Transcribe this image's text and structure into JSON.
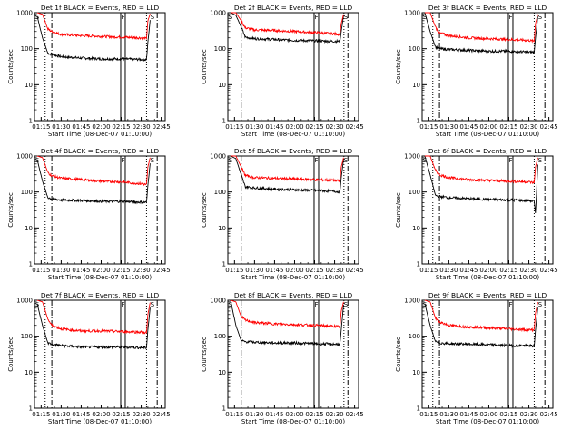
{
  "figure": {
    "ylabel": "Counts/sec",
    "xlabel": "Start Time (08-Dec-07 01:10:00)",
    "x_ticks": [
      "01:15",
      "01:30",
      "01:45",
      "02:00",
      "02:15",
      "02:30",
      "02:45"
    ],
    "y_ticks": [
      "1",
      "10",
      "100",
      "1000"
    ],
    "colors": {
      "events": "#000000",
      "lld": "#ff0000"
    },
    "marker_labels": {
      "flare": "F",
      "saa": "S"
    }
  },
  "chart_data": [
    {
      "type": "line",
      "title": "Det 1f BLACK = Events, RED = LLD",
      "ylim": [
        1,
        1000
      ],
      "y_scale": "log",
      "x_range": [
        "01:10",
        "02:48"
      ],
      "markers": {
        "dotted": [
          "01:18",
          "02:34"
        ],
        "dashdot": [
          "01:23",
          "02:42"
        ],
        "flare": [
          "02:16"
        ]
      },
      "series": [
        {
          "name": "Events",
          "color": "#000000",
          "x": [
            "01:12",
            "01:16",
            "01:20",
            "01:23",
            "01:30",
            "01:45",
            "02:00",
            "02:15",
            "02:30",
            "02:34",
            "02:35",
            "02:37"
          ],
          "values": [
            800,
            200,
            75,
            70,
            60,
            55,
            52,
            52,
            50,
            50,
            150,
            800
          ]
        },
        {
          "name": "LLD",
          "color": "#ff0000",
          "x": [
            "01:12",
            "01:16",
            "01:20",
            "01:23",
            "01:30",
            "01:45",
            "02:00",
            "02:15",
            "02:30",
            "02:34",
            "02:35",
            "02:37"
          ],
          "values": [
            1000,
            900,
            350,
            300,
            250,
            230,
            220,
            210,
            200,
            190,
            600,
            1000
          ]
        }
      ]
    },
    {
      "type": "line",
      "title": "Det 2f BLACK = Events, RED = LLD",
      "ylim": [
        1,
        1000
      ],
      "y_scale": "log",
      "x_range": [
        "01:10",
        "02:48"
      ],
      "markers": {
        "dotted": [
          "02:37"
        ],
        "dashdot": [
          "01:20",
          "02:40"
        ],
        "flare": [
          "02:16"
        ]
      },
      "series": [
        {
          "name": "Events",
          "color": "#000000",
          "x": [
            "01:12",
            "01:16",
            "01:20",
            "01:23",
            "01:30",
            "01:45",
            "02:00",
            "02:15",
            "02:30",
            "02:34",
            "02:35",
            "02:37"
          ],
          "values": [
            1000,
            850,
            400,
            210,
            190,
            180,
            170,
            165,
            160,
            160,
            300,
            1000
          ]
        },
        {
          "name": "LLD",
          "color": "#ff0000",
          "x": [
            "01:12",
            "01:16",
            "01:20",
            "01:23",
            "01:30",
            "01:45",
            "02:00",
            "02:15",
            "02:30",
            "02:34",
            "02:35",
            "02:37"
          ],
          "values": [
            1000,
            1000,
            600,
            380,
            330,
            320,
            300,
            280,
            260,
            250,
            500,
            1000
          ]
        }
      ]
    },
    {
      "type": "line",
      "title": "Det 3f BLACK = Events, RED = LLD",
      "ylim": [
        1,
        1000
      ],
      "y_scale": "log",
      "x_range": [
        "01:10",
        "02:48"
      ],
      "markers": {
        "dotted": [
          "01:18",
          "02:34"
        ],
        "dashdot": [
          "01:23",
          "02:42"
        ],
        "flare": [
          "02:16"
        ]
      },
      "series": [
        {
          "name": "Events",
          "color": "#000000",
          "x": [
            "01:12",
            "01:16",
            "01:20",
            "01:23",
            "01:30",
            "01:45",
            "02:00",
            "02:15",
            "02:30",
            "02:34",
            "02:35",
            "02:37"
          ],
          "values": [
            1000,
            300,
            110,
            100,
            95,
            90,
            85,
            85,
            80,
            80,
            200,
            1000
          ]
        },
        {
          "name": "LLD",
          "color": "#ff0000",
          "x": [
            "01:12",
            "01:16",
            "01:20",
            "01:23",
            "01:30",
            "01:45",
            "02:00",
            "02:15",
            "02:30",
            "02:34",
            "02:35",
            "02:37"
          ],
          "values": [
            1000,
            1000,
            400,
            270,
            230,
            200,
            190,
            180,
            170,
            160,
            500,
            1000
          ]
        }
      ]
    },
    {
      "type": "line",
      "title": "Det 4f BLACK = Events, RED = LLD",
      "ylim": [
        1,
        1000
      ],
      "y_scale": "log",
      "x_range": [
        "01:10",
        "02:48"
      ],
      "markers": {
        "dotted": [
          "01:18",
          "02:34"
        ],
        "dashdot": [
          "01:23",
          "02:42"
        ],
        "flare": [
          "02:16"
        ]
      },
      "series": [
        {
          "name": "Events",
          "color": "#000000",
          "x": [
            "01:12",
            "01:16",
            "01:20",
            "01:23",
            "01:30",
            "01:45",
            "02:00",
            "02:15",
            "02:30",
            "02:34",
            "02:35",
            "02:37"
          ],
          "values": [
            800,
            200,
            70,
            65,
            60,
            58,
            55,
            55,
            52,
            52,
            150,
            800
          ]
        },
        {
          "name": "LLD",
          "color": "#ff0000",
          "x": [
            "01:12",
            "01:16",
            "01:20",
            "01:23",
            "01:30",
            "01:45",
            "02:00",
            "02:15",
            "02:30",
            "02:34",
            "02:35",
            "02:37"
          ],
          "values": [
            1000,
            900,
            350,
            280,
            240,
            220,
            200,
            190,
            170,
            160,
            500,
            1000
          ]
        }
      ]
    },
    {
      "type": "line",
      "title": "Det 5f BLACK = Events, RED = LLD",
      "ylim": [
        1,
        1000
      ],
      "y_scale": "log",
      "x_range": [
        "01:10",
        "02:48"
      ],
      "markers": {
        "dotted": [
          "02:37"
        ],
        "dashdot": [
          "01:20",
          "02:40"
        ],
        "flare": [
          "02:16"
        ]
      },
      "series": [
        {
          "name": "Events",
          "color": "#000000",
          "x": [
            "01:12",
            "01:16",
            "01:20",
            "01:23",
            "01:30",
            "01:45",
            "02:00",
            "02:15",
            "02:30",
            "02:34",
            "02:35",
            "02:37"
          ],
          "values": [
            1000,
            850,
            300,
            140,
            130,
            120,
            115,
            110,
            105,
            100,
            250,
            1000
          ]
        },
        {
          "name": "LLD",
          "color": "#ff0000",
          "x": [
            "01:12",
            "01:16",
            "01:20",
            "01:23",
            "01:30",
            "01:45",
            "02:00",
            "02:15",
            "02:30",
            "02:34",
            "02:35",
            "02:37"
          ],
          "values": [
            1000,
            1000,
            500,
            290,
            250,
            240,
            230,
            220,
            210,
            200,
            500,
            1000
          ]
        }
      ]
    },
    {
      "type": "line",
      "title": "Det 6f BLACK = Events, RED = LLD",
      "ylim": [
        1,
        1000
      ],
      "y_scale": "log",
      "x_range": [
        "01:10",
        "02:48"
      ],
      "markers": {
        "dotted": [
          "01:18",
          "02:34"
        ],
        "dashdot": [
          "01:23",
          "02:42"
        ],
        "flare": [
          "02:16"
        ]
      },
      "series": [
        {
          "name": "Events",
          "color": "#000000",
          "x": [
            "01:12",
            "01:16",
            "01:20",
            "01:23",
            "01:30",
            "01:45",
            "02:00",
            "02:15",
            "02:30",
            "02:34",
            "02:35",
            "02:37"
          ],
          "values": [
            1000,
            300,
            80,
            75,
            70,
            65,
            62,
            60,
            58,
            55,
            25,
            1000
          ]
        },
        {
          "name": "LLD",
          "color": "#ff0000",
          "x": [
            "01:12",
            "01:16",
            "01:20",
            "01:23",
            "01:30",
            "01:45",
            "02:00",
            "02:15",
            "02:30",
            "02:34",
            "02:35",
            "02:37"
          ],
          "values": [
            1000,
            1000,
            400,
            300,
            250,
            220,
            210,
            200,
            190,
            180,
            500,
            1000
          ]
        }
      ]
    },
    {
      "type": "line",
      "title": "Det 7f BLACK = Events, RED = LLD",
      "ylim": [
        1,
        1000
      ],
      "y_scale": "log",
      "x_range": [
        "01:10",
        "02:48"
      ],
      "markers": {
        "dotted": [
          "01:18",
          "02:34"
        ],
        "dashdot": [
          "01:23",
          "02:42"
        ],
        "flare": [
          "02:16"
        ]
      },
      "series": [
        {
          "name": "Events",
          "color": "#000000",
          "x": [
            "01:12",
            "01:16",
            "01:20",
            "01:23",
            "01:30",
            "01:45",
            "02:00",
            "02:15",
            "02:30",
            "02:34",
            "02:35",
            "02:37"
          ],
          "values": [
            800,
            200,
            65,
            60,
            55,
            50,
            50,
            50,
            48,
            48,
            150,
            800
          ]
        },
        {
          "name": "LLD",
          "color": "#ff0000",
          "x": [
            "01:12",
            "01:16",
            "01:20",
            "01:23",
            "01:30",
            "01:45",
            "02:00",
            "02:15",
            "02:30",
            "02:34",
            "02:35",
            "02:37"
          ],
          "values": [
            1000,
            900,
            300,
            200,
            160,
            140,
            140,
            135,
            130,
            125,
            400,
            1000
          ]
        }
      ]
    },
    {
      "type": "line",
      "title": "Det 8f BLACK = Events, RED = LLD",
      "ylim": [
        1,
        1000
      ],
      "y_scale": "log",
      "x_range": [
        "01:10",
        "02:48"
      ],
      "markers": {
        "dotted": [
          "02:37"
        ],
        "dashdot": [
          "01:20",
          "02:40"
        ],
        "flare": [
          "02:16"
        ]
      },
      "series": [
        {
          "name": "Events",
          "color": "#000000",
          "x": [
            "01:12",
            "01:16",
            "01:20",
            "01:23",
            "01:30",
            "01:45",
            "02:00",
            "02:15",
            "02:30",
            "02:34",
            "02:35",
            "02:37"
          ],
          "values": [
            1000,
            200,
            75,
            70,
            68,
            65,
            65,
            62,
            60,
            60,
            150,
            1000
          ]
        },
        {
          "name": "LLD",
          "color": "#ff0000",
          "x": [
            "01:12",
            "01:16",
            "01:20",
            "01:23",
            "01:30",
            "01:45",
            "02:00",
            "02:15",
            "02:30",
            "02:34",
            "02:35",
            "02:37"
          ],
          "values": [
            1000,
            900,
            350,
            280,
            240,
            220,
            210,
            200,
            190,
            180,
            500,
            1000
          ]
        }
      ]
    },
    {
      "type": "line",
      "title": "Det 9f BLACK = Events, RED = LLD",
      "ylim": [
        1,
        1000
      ],
      "y_scale": "log",
      "x_range": [
        "01:10",
        "02:48"
      ],
      "markers": {
        "dotted": [
          "01:18",
          "02:34"
        ],
        "dashdot": [
          "01:23",
          "02:42"
        ],
        "flare": [
          "02:16"
        ]
      },
      "series": [
        {
          "name": "Events",
          "color": "#000000",
          "x": [
            "01:12",
            "01:16",
            "01:20",
            "01:23",
            "01:30",
            "01:45",
            "02:00",
            "02:15",
            "02:30",
            "02:34",
            "02:35",
            "02:37"
          ],
          "values": [
            800,
            200,
            70,
            65,
            62,
            60,
            58,
            55,
            55,
            52,
            150,
            800
          ]
        },
        {
          "name": "LLD",
          "color": "#ff0000",
          "x": [
            "01:12",
            "01:16",
            "01:20",
            "01:23",
            "01:30",
            "01:45",
            "02:00",
            "02:15",
            "02:30",
            "02:34",
            "02:35",
            "02:37"
          ],
          "values": [
            1000,
            900,
            320,
            250,
            200,
            180,
            170,
            160,
            150,
            150,
            450,
            1000
          ]
        }
      ]
    }
  ]
}
